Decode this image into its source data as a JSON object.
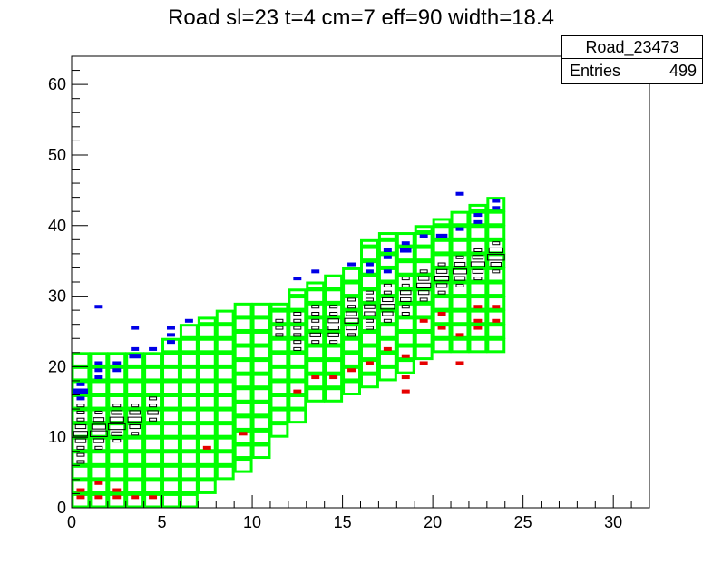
{
  "chart_data": {
    "type": "heatmap",
    "title": "Road sl=23 t=4 cm=7 eff=90 width=18.4",
    "xlim": [
      0,
      32
    ],
    "ylim": [
      0,
      64
    ],
    "x_ticks": [
      "0",
      "5",
      "10",
      "15",
      "20",
      "25",
      "30"
    ],
    "y_ticks": [
      "0",
      "10",
      "20",
      "30",
      "40",
      "50",
      "60"
    ],
    "stats": {
      "name": "Road_23473",
      "entries_label": "Entries",
      "entries": "499"
    },
    "road_window": {
      "description_color": "#00ff00",
      "columns": [
        {
          "x": 0,
          "ylo": 0,
          "yhi": 22
        },
        {
          "x": 1,
          "ylo": 0,
          "yhi": 22
        },
        {
          "x": 2,
          "ylo": 0,
          "yhi": 22
        },
        {
          "x": 3,
          "ylo": 0,
          "yhi": 22
        },
        {
          "x": 4,
          "ylo": 0,
          "yhi": 22
        },
        {
          "x": 5,
          "ylo": 0,
          "yhi": 24
        },
        {
          "x": 6,
          "ylo": 0,
          "yhi": 26
        },
        {
          "x": 7,
          "ylo": 2,
          "yhi": 27
        },
        {
          "x": 8,
          "ylo": 4,
          "yhi": 28
        },
        {
          "x": 9,
          "ylo": 5,
          "yhi": 29
        },
        {
          "x": 10,
          "ylo": 7,
          "yhi": 29
        },
        {
          "x": 11,
          "ylo": 10,
          "yhi": 29
        },
        {
          "x": 12,
          "ylo": 12,
          "yhi": 31
        },
        {
          "x": 13,
          "ylo": 15,
          "yhi": 32
        },
        {
          "x": 14,
          "ylo": 15,
          "yhi": 33
        },
        {
          "x": 15,
          "ylo": 16,
          "yhi": 34
        },
        {
          "x": 16,
          "ylo": 17,
          "yhi": 38
        },
        {
          "x": 17,
          "ylo": 18,
          "yhi": 39
        },
        {
          "x": 18,
          "ylo": 19,
          "yhi": 39
        },
        {
          "x": 19,
          "ylo": 21,
          "yhi": 40
        },
        {
          "x": 20,
          "ylo": 22,
          "yhi": 41
        },
        {
          "x": 21,
          "ylo": 22,
          "yhi": 42
        },
        {
          "x": 22,
          "ylo": 22,
          "yhi": 43
        },
        {
          "x": 23,
          "ylo": 22,
          "yhi": 44
        }
      ]
    },
    "cells_black": [
      [
        0,
        10,
        3
      ],
      [
        0,
        9,
        2
      ],
      [
        0,
        11,
        2
      ],
      [
        0,
        8,
        1
      ],
      [
        0,
        7,
        1
      ],
      [
        0,
        6,
        1
      ],
      [
        0,
        13,
        1
      ],
      [
        0,
        12,
        1
      ],
      [
        0,
        14,
        1
      ],
      [
        1,
        10,
        4
      ],
      [
        1,
        11,
        3
      ],
      [
        1,
        9,
        2
      ],
      [
        1,
        12,
        2
      ],
      [
        1,
        8,
        1
      ],
      [
        1,
        13,
        1
      ],
      [
        2,
        11,
        4
      ],
      [
        2,
        12,
        3
      ],
      [
        2,
        10,
        2
      ],
      [
        2,
        13,
        2
      ],
      [
        2,
        9,
        1
      ],
      [
        2,
        14,
        1
      ],
      [
        3,
        12,
        3
      ],
      [
        3,
        13,
        2
      ],
      [
        3,
        11,
        2
      ],
      [
        3,
        10,
        1
      ],
      [
        3,
        14,
        1
      ],
      [
        4,
        13,
        2
      ],
      [
        4,
        12,
        1
      ],
      [
        4,
        14,
        1
      ],
      [
        4,
        15,
        1
      ],
      [
        11,
        24,
        1
      ],
      [
        11,
        25,
        1
      ],
      [
        11,
        26,
        1
      ],
      [
        12,
        23,
        1
      ],
      [
        12,
        24,
        1
      ],
      [
        12,
        25,
        1
      ],
      [
        12,
        26,
        1
      ],
      [
        12,
        27,
        1
      ],
      [
        12,
        22,
        1
      ],
      [
        13,
        24,
        2
      ],
      [
        13,
        25,
        1
      ],
      [
        13,
        26,
        1
      ],
      [
        13,
        27,
        1
      ],
      [
        13,
        23,
        1
      ],
      [
        13,
        28,
        1
      ],
      [
        14,
        24,
        2
      ],
      [
        14,
        25,
        2
      ],
      [
        14,
        26,
        2
      ],
      [
        14,
        27,
        1
      ],
      [
        14,
        23,
        1
      ],
      [
        14,
        28,
        1
      ],
      [
        15,
        26,
        3
      ],
      [
        15,
        27,
        2
      ],
      [
        15,
        25,
        2
      ],
      [
        15,
        28,
        1
      ],
      [
        15,
        29,
        1
      ],
      [
        15,
        24,
        1
      ],
      [
        16,
        27,
        2
      ],
      [
        16,
        28,
        2
      ],
      [
        16,
        26,
        1
      ],
      [
        16,
        29,
        1
      ],
      [
        16,
        30,
        1
      ],
      [
        16,
        25,
        1
      ],
      [
        17,
        28,
        3
      ],
      [
        17,
        29,
        2
      ],
      [
        17,
        27,
        2
      ],
      [
        17,
        30,
        1
      ],
      [
        17,
        31,
        1
      ],
      [
        17,
        26,
        1
      ],
      [
        18,
        30,
        2
      ],
      [
        18,
        29,
        2
      ],
      [
        18,
        31,
        1
      ],
      [
        18,
        28,
        1
      ],
      [
        18,
        32,
        1
      ],
      [
        18,
        27,
        1
      ],
      [
        19,
        31,
        3
      ],
      [
        19,
        30,
        2
      ],
      [
        19,
        32,
        2
      ],
      [
        19,
        29,
        1
      ],
      [
        19,
        33,
        1
      ],
      [
        20,
        32,
        3
      ],
      [
        20,
        33,
        2
      ],
      [
        20,
        31,
        2
      ],
      [
        20,
        34,
        1
      ],
      [
        20,
        30,
        1
      ],
      [
        21,
        33,
        3
      ],
      [
        21,
        34,
        2
      ],
      [
        21,
        32,
        2
      ],
      [
        21,
        35,
        1
      ],
      [
        21,
        31,
        1
      ],
      [
        22,
        34,
        3
      ],
      [
        22,
        35,
        2
      ],
      [
        22,
        33,
        2
      ],
      [
        22,
        36,
        1
      ],
      [
        22,
        32,
        1
      ],
      [
        23,
        35,
        4
      ],
      [
        23,
        36,
        3
      ],
      [
        23,
        34,
        2
      ],
      [
        23,
        37,
        1
      ],
      [
        23,
        33,
        1
      ]
    ],
    "cells_blue": [
      [
        0,
        16,
        3
      ],
      [
        0,
        17,
        1
      ],
      [
        0,
        15,
        1
      ],
      [
        1,
        19,
        1
      ],
      [
        1,
        20,
        1
      ],
      [
        1,
        18,
        1
      ],
      [
        2,
        20,
        1
      ],
      [
        2,
        19,
        1
      ],
      [
        3,
        21,
        2
      ],
      [
        3,
        22,
        1
      ],
      [
        4,
        22,
        1
      ],
      [
        5,
        23,
        1
      ],
      [
        5,
        24,
        1
      ],
      [
        1,
        28,
        1
      ],
      [
        3,
        25,
        1
      ],
      [
        5,
        25,
        1
      ],
      [
        6,
        26,
        1
      ],
      [
        12,
        32,
        1
      ],
      [
        13,
        33,
        1
      ],
      [
        15,
        34,
        1
      ],
      [
        16,
        34,
        1
      ],
      [
        16,
        33,
        1
      ],
      [
        17,
        35,
        1
      ],
      [
        17,
        36,
        1
      ],
      [
        18,
        36,
        2
      ],
      [
        18,
        37,
        1
      ],
      [
        19,
        38,
        1
      ],
      [
        20,
        38,
        2
      ],
      [
        21,
        39,
        1
      ],
      [
        22,
        40,
        1
      ],
      [
        23,
        42,
        1
      ],
      [
        23,
        43,
        1
      ],
      [
        21,
        44,
        1
      ],
      [
        22,
        41,
        1
      ],
      [
        17,
        33,
        1
      ]
    ],
    "cells_red": [
      [
        0,
        1,
        1
      ],
      [
        0,
        2,
        1
      ],
      [
        1,
        1,
        1
      ],
      [
        1,
        3,
        1
      ],
      [
        2,
        2,
        1
      ],
      [
        2,
        1,
        1
      ],
      [
        3,
        1,
        1
      ],
      [
        4,
        1,
        1
      ],
      [
        7,
        8,
        1
      ],
      [
        9,
        10,
        1
      ],
      [
        13,
        18,
        1
      ],
      [
        14,
        18,
        1
      ],
      [
        15,
        19,
        1
      ],
      [
        16,
        20,
        1
      ],
      [
        17,
        22,
        1
      ],
      [
        18,
        21,
        1
      ],
      [
        19,
        20,
        1
      ],
      [
        18,
        18,
        1
      ],
      [
        18,
        16,
        1
      ],
      [
        21,
        20,
        1
      ],
      [
        19,
        26,
        1
      ],
      [
        20,
        25,
        1
      ],
      [
        21,
        24,
        1
      ],
      [
        22,
        26,
        1
      ],
      [
        22,
        28,
        1
      ],
      [
        22,
        25,
        1
      ],
      [
        23,
        28,
        1
      ],
      [
        23,
        26,
        1
      ],
      [
        20,
        27,
        1
      ],
      [
        12,
        16,
        1
      ]
    ]
  }
}
